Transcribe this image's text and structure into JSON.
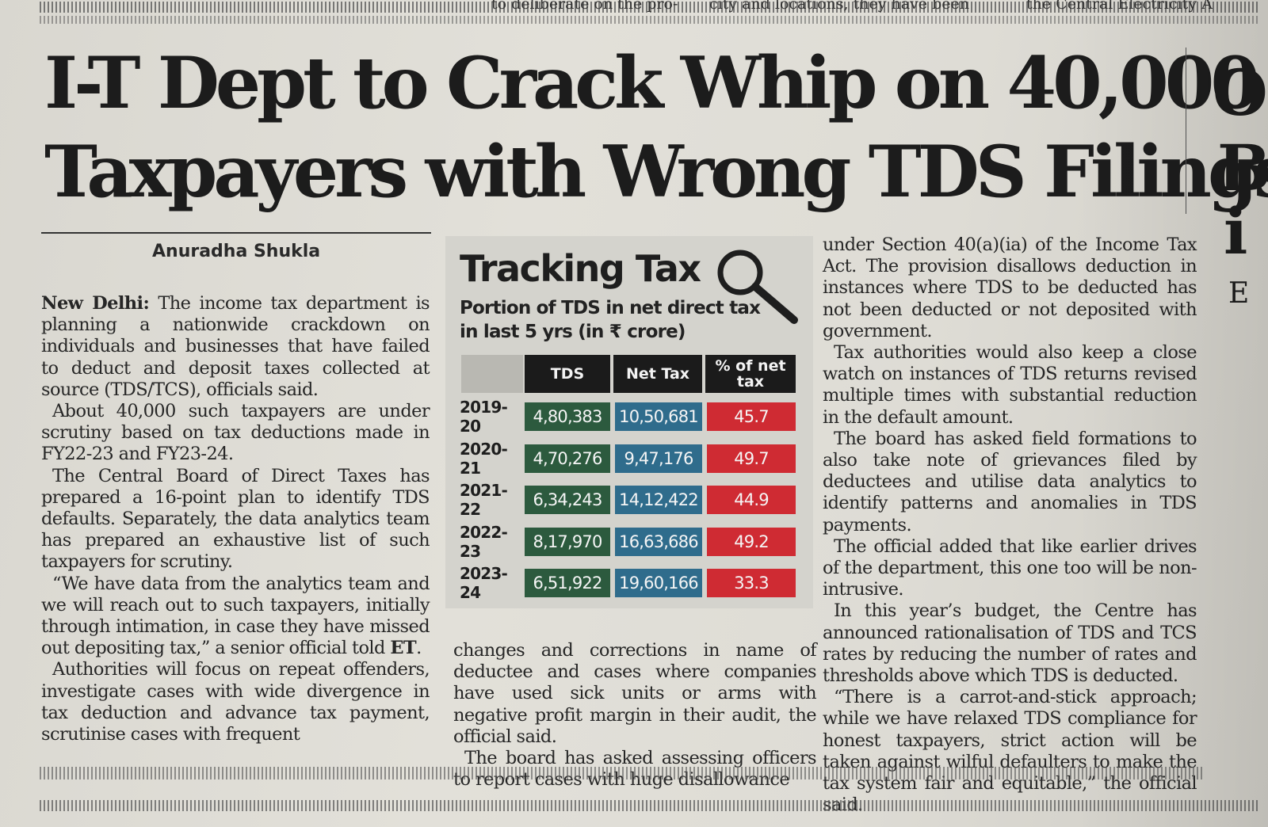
{
  "top_fragments": {
    "left": "to deliberate on the pro-",
    "middle": "city and locations, they have been",
    "right": "the Central Electricity A"
  },
  "headline": {
    "line1": "I-T Dept to Crack Whip on 40,000",
    "line2": "Taxpayers with Wrong TDS Filings"
  },
  "byline": "Anuradha Shukla",
  "column1": {
    "dateline": "New Delhi:",
    "p1": "The income tax department is planning a nationwide crackdown on individuals and businesses that have failed to deduct and deposit taxes collected at source (TDS/TCS), officials said.",
    "p2": "About 40,000 such taxpayers are under scrutiny based on tax deductions made in FY22-23 and FY23-24.",
    "p3": "The Central Board of Direct Taxes has prepared a 16-point plan to identify TDS defaults. Separately, the data analytics team has prepared an exhaustive list of such taxpayers for scrutiny.",
    "p4_pre": "“We have data from the analytics team and we will reach out to such taxpayers, initially through intimation, in case they have missed out depositing tax,” a senior official told",
    "p4_bold": "ET",
    "p4_post": ".",
    "p5": "Authorities will focus on repeat offenders, investigate cases with wide divergence in tax deduction and advance tax payment, scrutinise cases with frequent"
  },
  "column2": {
    "p1": "changes and corrections in name of deductee and cases where companies have used sick units or arms with negative profit margin in their audit, the official said.",
    "p2": "The board has asked assessing officers to report cases with huge disallowance"
  },
  "column3": {
    "p1": "under Section 40(a)(ia) of the Income Tax Act. The provision disallows deduction in instances where TDS to be deducted has not been deducted or not deposited with government.",
    "p2": "Tax authorities would also keep a close watch on instances of TDS returns revised multiple times with substantial reduction in the default amount.",
    "p3": "The board has asked field formations to also take note of grievances filed by deductees and utilise data analytics to identify patterns and anomalies in TDS payments.",
    "p4": "The official added that like earlier drives of the department, this one too will be non-intrusive.",
    "p5": "In this year’s budget, the Centre has announced rationalisation of TDS and TCS rates by reducing the number of rates and thresholds above which TDS is deducted.",
    "p6": "“There is a carrot-and-stick approach; while we have relaxed TDS compliance for honest taxpayers, strict action will be taken against wilful defaulters to make the tax system fair and equitable,” the official said."
  },
  "edge_letters": [
    "O",
    "B",
    "i",
    "E"
  ],
  "graphic": {
    "title": "Tracking Tax",
    "subtitle": "Portion of TDS in net direct tax in last 5 yrs (in ₹ crore)",
    "icon": "magnifying-glass-icon"
  },
  "chart_data": {
    "type": "table",
    "title": "Tracking Tax",
    "subtitle": "Portion of TDS in net direct tax in last 5 yrs (in ₹ crore)",
    "columns": [
      "TDS",
      "Net Tax",
      "% of net tax"
    ],
    "rows": [
      {
        "year": "2019-20",
        "tds": "4,80,383",
        "net_tax": "10,50,681",
        "pct": "45.7"
      },
      {
        "year": "2020-21",
        "tds": "4,70,276",
        "net_tax": "9,47,176",
        "pct": "49.7"
      },
      {
        "year": "2021-22",
        "tds": "6,34,243",
        "net_tax": "14,12,422",
        "pct": "44.9"
      },
      {
        "year": "2022-23",
        "tds": "8,17,970",
        "net_tax": "16,63,686",
        "pct": "49.2"
      },
      {
        "year": "2023-24",
        "tds": "6,51,922",
        "net_tax": "19,60,166",
        "pct": "33.3"
      }
    ],
    "colors": {
      "tds": "#2c5a3e",
      "net_tax": "#2f6c8c",
      "pct": "#cf2b33",
      "header": "#1b1b1b"
    }
  }
}
